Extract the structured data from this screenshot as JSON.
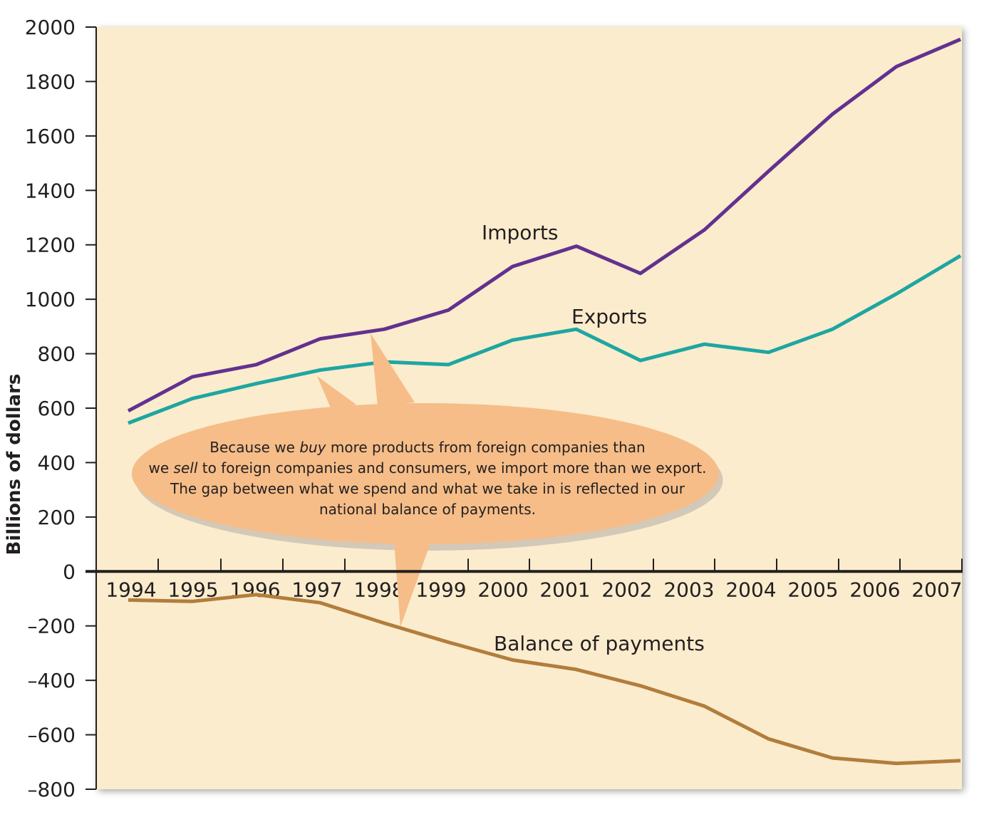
{
  "chart_data": {
    "type": "line",
    "title": "",
    "xlabel": "",
    "ylabel": "Billions of dollars",
    "ylim": [
      -800,
      2000
    ],
    "yticks": [
      "2000",
      "1800",
      "1600",
      "1400",
      "1200",
      "1000",
      "800",
      "600",
      "400",
      "200",
      "0",
      "–200",
      "–400",
      "–600",
      "–800"
    ],
    "categories": [
      "1994",
      "1995",
      "1996",
      "1997",
      "1998",
      "1999",
      "2000",
      "2001",
      "2002",
      "2003",
      "2004",
      "2005",
      "2006",
      "2007"
    ],
    "grid": false,
    "legend": "none",
    "series": [
      {
        "name": "Imports",
        "color": "#62318f",
        "values": [
          [
            1994,
            590
          ],
          [
            1995,
            715
          ],
          [
            1996,
            760
          ],
          [
            1997,
            855
          ],
          [
            1998,
            890
          ],
          [
            1999,
            960
          ],
          [
            2000,
            1120
          ],
          [
            2001,
            1195
          ],
          [
            2002,
            1095
          ],
          [
            2003,
            1255
          ],
          [
            2004,
            1470
          ],
          [
            2005,
            1680
          ],
          [
            2006,
            1855
          ],
          [
            2007,
            1955
          ]
        ]
      },
      {
        "name": "Exports",
        "color": "#1ea6a1",
        "values": [
          [
            1994,
            545
          ],
          [
            1995,
            635
          ],
          [
            1996,
            690
          ],
          [
            1997,
            740
          ],
          [
            1998,
            770
          ],
          [
            1999,
            760
          ],
          [
            2000,
            850
          ],
          [
            2001,
            890
          ],
          [
            2002,
            775
          ],
          [
            2003,
            835
          ],
          [
            2004,
            805
          ],
          [
            2005,
            890
          ],
          [
            2006,
            1020
          ],
          [
            2007,
            1160
          ]
        ]
      },
      {
        "name": "Balance of payments",
        "color": "#b27d3c",
        "values": [
          [
            1994,
            -105
          ],
          [
            1995,
            -110
          ],
          [
            1996,
            -85
          ],
          [
            1997,
            -115
          ],
          [
            1998,
            -190
          ],
          [
            1999,
            -260
          ],
          [
            2000,
            -325
          ],
          [
            2001,
            -360
          ],
          [
            2002,
            -420
          ],
          [
            2003,
            -495
          ],
          [
            2004,
            -615
          ],
          [
            2005,
            -685
          ],
          [
            2006,
            -705
          ],
          [
            2007,
            -695
          ]
        ]
      }
    ],
    "annotation": {
      "lines": [
        [
          "Because we ",
          {
            "i": "buy"
          },
          " more products from foreign companies than"
        ],
        [
          "we ",
          {
            "i": "sell"
          },
          " to foreign companies and consumers, we import more than we export."
        ],
        [
          "The gap between what we spend and what we take in is reflected in our"
        ],
        [
          "national balance of payments."
        ]
      ]
    },
    "colors": {
      "plot_background": "#fbeccd",
      "bubble": "#f6bd88",
      "axis": "#231f20"
    }
  }
}
